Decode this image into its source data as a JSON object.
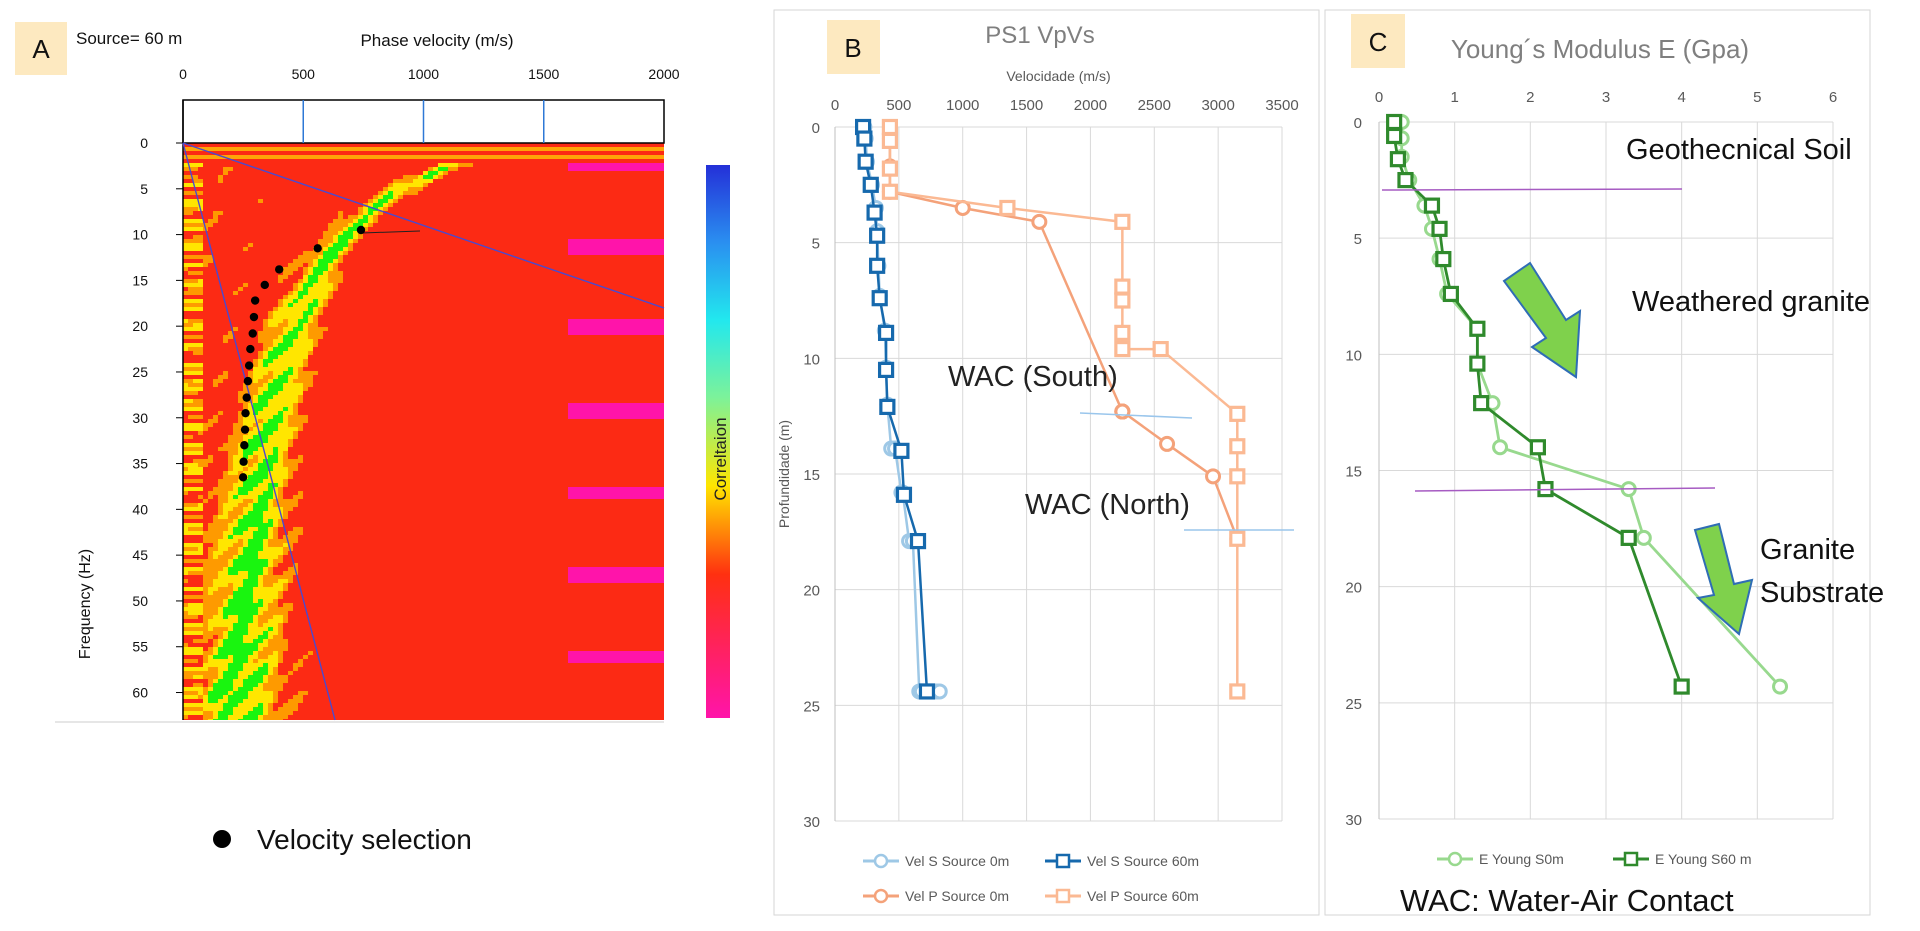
{
  "panels": {
    "a": {
      "letter": "A",
      "source_label": "Source= 60   m",
      "x_title": "Phase velocity (m/s)",
      "y_title": "Frequency (Hz)",
      "colorbar_label": "Correltaion",
      "legend_label": "Velocity selection",
      "colors": {
        "red": "#fc2a14",
        "orange": "#fe9a00",
        "yellow": "#ffe600",
        "green": "#19f50f",
        "magenta": "#ff14aa",
        "gridline": "#2e78d6",
        "trend": "#4a4acf"
      }
    },
    "b": {
      "letter": "B",
      "annotation_south": "WAC (South)",
      "annotation_north": "WAC (North)"
    },
    "c": {
      "letter": "C",
      "label_soil": "Geothecnical Soil",
      "label_weathered": "Weathered granite",
      "label_substrate_1": "Granite",
      "label_substrate_2": "Substrate",
      "footnote": "WAC: Water-Air Contact",
      "colors": {
        "arrow_fill": "#7fd14c",
        "arrow_stroke": "#2f6db5",
        "boundary": "#a65bc2"
      }
    }
  },
  "chart_data": [
    {
      "id": "dispersion",
      "type": "heatmap",
      "title": "",
      "xlabel": "Phase velocity (m/s)",
      "ylabel": "Frequency (Hz)",
      "xlim": [
        0,
        2000
      ],
      "ylim": [
        63,
        0
      ],
      "x_ticks": [
        "0",
        "500",
        "1000",
        "1500",
        "2000"
      ],
      "y_ticks": [
        "0",
        "5",
        "10",
        "15",
        "20",
        "25",
        "30",
        "35",
        "40",
        "45",
        "50",
        "55",
        "60"
      ],
      "picks": [
        {
          "v": 740,
          "f": 9.5
        },
        {
          "v": 560,
          "f": 11.5
        },
        {
          "v": 400,
          "f": 13.8
        },
        {
          "v": 340,
          "f": 15.5
        },
        {
          "v": 300,
          "f": 17.2
        },
        {
          "v": 295,
          "f": 19
        },
        {
          "v": 290,
          "f": 20.8
        },
        {
          "v": 280,
          "f": 22.5
        },
        {
          "v": 275,
          "f": 24.3
        },
        {
          "v": 270,
          "f": 26
        },
        {
          "v": 265,
          "f": 27.8
        },
        {
          "v": 260,
          "f": 29.5
        },
        {
          "v": 258,
          "f": 31.3
        },
        {
          "v": 255,
          "f": 33
        },
        {
          "v": 252,
          "f": 34.8
        },
        {
          "v": 250,
          "f": 36.5
        }
      ]
    },
    {
      "id": "vpvs",
      "type": "line",
      "title": "PS1 VpVs",
      "xlabel": "Velocidade (m/s)",
      "ylabel": "Profundidade (m)",
      "xlim": [
        0,
        3500
      ],
      "ylim": [
        0,
        30
      ],
      "x_ticks": [
        "0",
        "500",
        "1000",
        "1500",
        "2000",
        "2500",
        "3000",
        "3500"
      ],
      "y_ticks": [
        "0",
        "5",
        "10",
        "15",
        "20",
        "25",
        "30"
      ],
      "series": [
        {
          "name": "Vel S Source 0m",
          "color": "#9ec8e6",
          "marker": "circle",
          "x": [
            230,
            240,
            250,
            290,
            320,
            330,
            340,
            350,
            390,
            400,
            410,
            440,
            470,
            520,
            530,
            580,
            610,
            660,
            680,
            790,
            800,
            820
          ],
          "y": [
            0,
            0.5,
            1.5,
            2.5,
            3.5,
            4.5,
            6,
            7.3,
            8.8,
            10.4,
            12,
            13.9,
            13.9,
            15.8,
            15.8,
            17.9,
            17.9,
            24.4,
            24.4,
            24.4,
            24.4,
            24.4
          ]
        },
        {
          "name": "Vel S Source 60m",
          "color": "#1669ad",
          "marker": "square",
          "x": [
            220,
            230,
            240,
            280,
            310,
            330,
            330,
            350,
            400,
            400,
            410,
            520,
            540,
            650,
            720
          ],
          "y": [
            0,
            0.5,
            1.5,
            2.5,
            3.7,
            4.7,
            6,
            7.4,
            8.9,
            10.5,
            12.1,
            14,
            15.9,
            17.9,
            24.4
          ]
        },
        {
          "name": "Vel P Source 0m",
          "color": "#f4a27a",
          "marker": "circle",
          "x": [
            430,
            430,
            430,
            430,
            430,
            1000,
            1600,
            2250,
            2250,
            2250,
            2250,
            2600,
            2960,
            3150
          ],
          "y": [
            0,
            0.5,
            1.7,
            2.8,
            2.8,
            3.5,
            4.1,
            12.3,
            12.3,
            12.3,
            12.3,
            13.7,
            15.1,
            17.8
          ]
        },
        {
          "name": "Vel P Source 60m",
          "color": "#fbb993",
          "marker": "square",
          "x": [
            430,
            430,
            430,
            430,
            1350,
            2250,
            2250,
            2250,
            2250,
            2250,
            2550,
            3150,
            3150,
            3150,
            3150,
            3150
          ],
          "y": [
            0,
            0.6,
            1.8,
            2.8,
            3.5,
            4.1,
            6.9,
            7.5,
            8.9,
            9.6,
            9.6,
            12.4,
            13.8,
            15.1,
            17.8,
            24.4
          ]
        }
      ]
    },
    {
      "id": "young",
      "type": "line",
      "title": "Young´s Modulus E (Gpa)",
      "xlabel": "",
      "ylabel": "",
      "xlim": [
        0,
        6
      ],
      "ylim": [
        0,
        30
      ],
      "x_ticks": [
        "0",
        "1",
        "2",
        "3",
        "4",
        "5",
        "6"
      ],
      "y_ticks": [
        "0",
        "5",
        "10",
        "15",
        "20",
        "25",
        "30"
      ],
      "series": [
        {
          "name": "E Young S0m",
          "color": "#98d98e",
          "marker": "circle",
          "x": [
            0.3,
            0.3,
            0.3,
            0.4,
            0.6,
            0.7,
            0.8,
            0.9,
            1.3,
            1.3,
            1.5,
            1.6,
            3.3,
            3.5,
            5.3
          ],
          "y": [
            0,
            0.7,
            1.5,
            2.5,
            3.6,
            4.6,
            5.9,
            7.4,
            8.9,
            10.4,
            12.1,
            14,
            15.8,
            17.9,
            24.3
          ]
        },
        {
          "name": "E Young S60 m",
          "color": "#2f8a2c",
          "marker": "square",
          "x": [
            0.2,
            0.2,
            0.25,
            0.35,
            0.7,
            0.8,
            0.85,
            0.95,
            1.3,
            1.3,
            1.35,
            2.1,
            2.2,
            3.3,
            4.0
          ],
          "y": [
            0,
            0.6,
            1.6,
            2.5,
            3.6,
            4.6,
            5.9,
            7.4,
            8.9,
            10.4,
            12.1,
            14,
            15.8,
            17.9,
            24.3
          ]
        }
      ]
    }
  ]
}
